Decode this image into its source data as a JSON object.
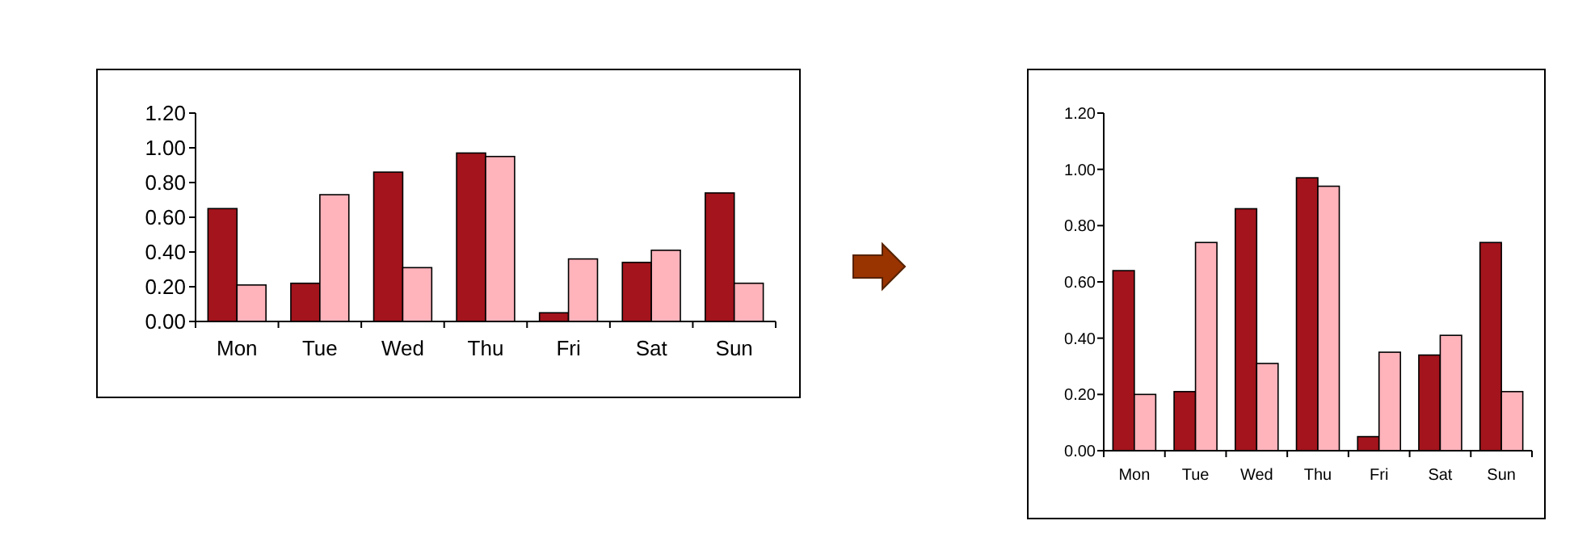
{
  "chart_data": [
    {
      "type": "bar",
      "categories": [
        "Mon",
        "Tue",
        "Wed",
        "Thu",
        "Fri",
        "Sat",
        "Sun"
      ],
      "series": [
        {
          "color": "#a3141c",
          "values": [
            0.65,
            0.22,
            0.86,
            0.97,
            0.05,
            0.34,
            0.74
          ]
        },
        {
          "color": "#ffb3bb",
          "values": [
            0.21,
            0.73,
            0.31,
            0.95,
            0.36,
            0.41,
            0.22
          ]
        }
      ],
      "ylim": [
        0,
        1.2
      ],
      "yticks": [
        {
          "value": 0,
          "label": "0.00"
        },
        {
          "value": 0.2,
          "label": "0.20"
        },
        {
          "value": 0.4,
          "label": "0.40"
        },
        {
          "value": 0.6,
          "label": "0.60"
        },
        {
          "value": 0.8,
          "label": "0.80"
        },
        {
          "value": 1,
          "label": "1.00"
        },
        {
          "value": 1.2,
          "label": "1.20"
        }
      ],
      "grid": false
    },
    {
      "type": "bar",
      "categories": [
        "Mon",
        "Tue",
        "Wed",
        "Thu",
        "Fri",
        "Sat",
        "Sun"
      ],
      "series": [
        {
          "color": "#a3141c",
          "values": [
            0.64,
            0.21,
            0.86,
            0.97,
            0.05,
            0.34,
            0.74
          ]
        },
        {
          "color": "#ffb3bb",
          "values": [
            0.2,
            0.74,
            0.31,
            0.94,
            0.35,
            0.41,
            0.21
          ]
        }
      ],
      "ylim": [
        0,
        1.2
      ],
      "yticks": [
        {
          "value": 0,
          "label": "0.00"
        },
        {
          "value": 0.2,
          "label": "0.20"
        },
        {
          "value": 0.4,
          "label": "0.40"
        },
        {
          "value": 0.6,
          "label": "0.60"
        },
        {
          "value": 0.8,
          "label": "0.80"
        },
        {
          "value": 1,
          "label": "1.00"
        },
        {
          "value": 1.2,
          "label": "1.20"
        }
      ],
      "grid": false
    }
  ]
}
